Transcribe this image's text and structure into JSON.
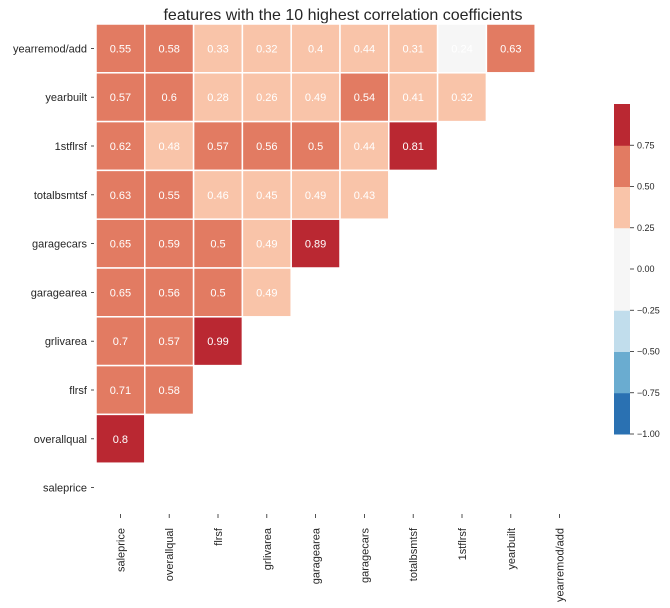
{
  "chart_data": {
    "type": "heatmap",
    "title": "features with the 10 highest correlation coefficients",
    "row_labels": [
      "yearremod/add",
      "yearbuilt",
      "1stflrsf",
      "totalbsmtsf",
      "garagecars",
      "garagearea",
      "grlivarea",
      "flrsf",
      "overallqual",
      "saleprice"
    ],
    "col_labels": [
      "saleprice",
      "overallqual",
      "flrsf",
      "grlivarea",
      "garagearea",
      "garagecars",
      "totalbsmtsf",
      "1stflrsf",
      "yearbuilt",
      "yearremod/add"
    ],
    "values": [
      [
        0.55,
        0.58,
        0.33,
        0.32,
        0.4,
        0.44,
        0.31,
        0.24,
        0.63,
        null
      ],
      [
        0.57,
        0.6,
        0.28,
        0.26,
        0.49,
        0.54,
        0.41,
        0.32,
        null,
        null
      ],
      [
        0.62,
        0.48,
        0.57,
        0.56,
        0.5,
        0.44,
        0.81,
        null,
        null,
        null
      ],
      [
        0.63,
        0.55,
        0.46,
        0.45,
        0.49,
        0.43,
        null,
        null,
        null,
        null
      ],
      [
        0.65,
        0.59,
        0.5,
        0.49,
        0.89,
        null,
        null,
        null,
        null,
        null
      ],
      [
        0.65,
        0.56,
        0.5,
        0.49,
        null,
        null,
        null,
        null,
        null,
        null
      ],
      [
        0.7,
        0.57,
        0.99,
        null,
        null,
        null,
        null,
        null,
        null,
        null
      ],
      [
        0.71,
        0.58,
        null,
        null,
        null,
        null,
        null,
        null,
        null,
        null
      ],
      [
        0.8,
        null,
        null,
        null,
        null,
        null,
        null,
        null,
        null,
        null
      ],
      [
        null,
        null,
        null,
        null,
        null,
        null,
        null,
        null,
        null,
        null
      ]
    ],
    "color_range": [
      -1.0,
      1.0
    ],
    "colorbar_ticks": [
      "0.75",
      "0.50",
      "0.25",
      "0.00",
      "−0.25",
      "−0.50",
      "−0.75",
      "−1.00"
    ],
    "colorbar_tick_values": [
      0.75,
      0.5,
      0.25,
      0.0,
      -0.25,
      -0.5,
      -0.75,
      -1.0
    ],
    "colorbar_bins": [
      {
        "from": -1.0,
        "to": -0.75,
        "color": "#2a71b2"
      },
      {
        "from": -0.75,
        "to": -0.5,
        "color": "#6aacd0"
      },
      {
        "from": -0.5,
        "to": -0.25,
        "color": "#c1ddec"
      },
      {
        "from": -0.25,
        "to": 0.0,
        "color": "#f6f6f6"
      },
      {
        "from": 0.0,
        "to": 0.25,
        "color": "#f6f6f6"
      },
      {
        "from": 0.25,
        "to": 0.5,
        "color": "#f9c4a9"
      },
      {
        "from": 0.5,
        "to": 0.75,
        "color": "#e27b62"
      },
      {
        "from": 0.75,
        "to": 1.0,
        "color": "#ba2832"
      }
    ],
    "text_color_dark": "#262626",
    "text_color_light": "#ffffff",
    "grid_line_color": "#ffffff"
  }
}
